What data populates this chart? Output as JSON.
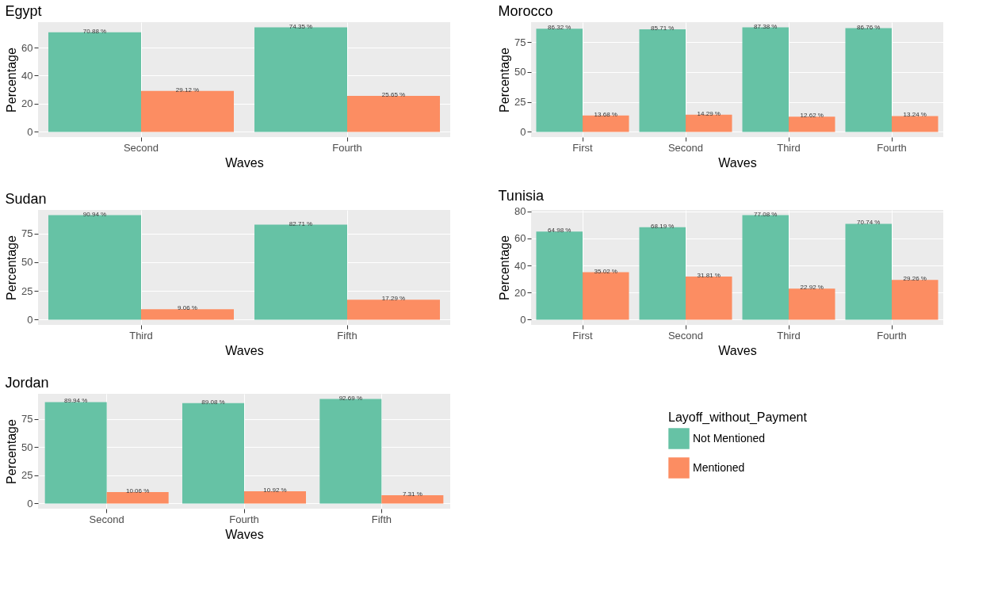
{
  "chart_data": [
    {
      "type": "bar",
      "title": "Egypt",
      "xlabel": "Waves",
      "ylabel": "Percentage",
      "categories": [
        "Second",
        "Fourth"
      ],
      "ylim": [
        -3.72,
        78.07
      ],
      "yticks": [
        0,
        20,
        40,
        60
      ],
      "grid": true,
      "series": [
        {
          "color": "#66c2a5",
          "values": [
            70.88,
            74.35
          ],
          "value_labels": [
            "70.88 %",
            "74.35 %"
          ]
        },
        {
          "color": "#fc8d62",
          "values": [
            29.12,
            25.65
          ],
          "value_labels": [
            "29.12 %",
            "25.65 %"
          ]
        }
      ]
    },
    {
      "type": "bar",
      "title": "Morocco",
      "xlabel": "Waves",
      "ylabel": "Percentage",
      "categories": [
        "First",
        "Second",
        "Third",
        "Fourth"
      ],
      "ylim": [
        -4.37,
        91.75
      ],
      "yticks": [
        0,
        25,
        50,
        75
      ],
      "grid": true,
      "series": [
        {
          "color": "#66c2a5",
          "values": [
            86.32,
            85.71,
            87.38,
            86.76
          ],
          "value_labels": [
            "86.32 %",
            "85.71 %",
            "87.38 %",
            "86.76 %"
          ]
        },
        {
          "color": "#fc8d62",
          "values": [
            13.68,
            14.29,
            12.62,
            13.24
          ],
          "value_labels": [
            "13.68 %",
            "14.29 %",
            "12.62 %",
            "13.24 %"
          ]
        }
      ]
    },
    {
      "type": "bar",
      "title": "Sudan",
      "xlabel": "Waves",
      "ylabel": "Percentage",
      "categories": [
        "Third",
        "Fifth"
      ],
      "ylim": [
        -4.55,
        95.49
      ],
      "yticks": [
        0,
        25,
        50,
        75
      ],
      "grid": true,
      "series": [
        {
          "color": "#66c2a5",
          "values": [
            90.94,
            82.71
          ],
          "value_labels": [
            "90.94 %",
            "82.71 %"
          ]
        },
        {
          "color": "#fc8d62",
          "values": [
            9.06,
            17.29
          ],
          "value_labels": [
            "9.06 %",
            "17.29 %"
          ]
        }
      ]
    },
    {
      "type": "bar",
      "title": "Tunisia",
      "xlabel": "Waves",
      "ylabel": "Percentage",
      "categories": [
        "First",
        "Second",
        "Third",
        "Fourth"
      ],
      "ylim": [
        -3.85,
        80.93
      ],
      "yticks": [
        0,
        20,
        40,
        60,
        80
      ],
      "grid": true,
      "series": [
        {
          "color": "#66c2a5",
          "values": [
            64.98,
            68.19,
            77.08,
            70.74
          ],
          "value_labels": [
            "64.98 %",
            "68.19 %",
            "77.08 %",
            "70.74 %"
          ]
        },
        {
          "color": "#fc8d62",
          "values": [
            35.02,
            31.81,
            22.92,
            29.26
          ],
          "value_labels": [
            "35.02 %",
            "31.81 %",
            "22.92 %",
            "29.26 %"
          ]
        }
      ]
    },
    {
      "type": "bar",
      "title": "Jordan",
      "xlabel": "Waves",
      "ylabel": "Percentage",
      "categories": [
        "Second",
        "Fourth",
        "Fifth"
      ],
      "ylim": [
        -4.63,
        97.32
      ],
      "yticks": [
        0,
        25,
        50,
        75
      ],
      "grid": true,
      "legend": "right",
      "legend_title": "Layoff_without_Payment",
      "series": [
        {
          "name": "Not Mentioned",
          "color": "#66c2a5",
          "values": [
            89.94,
            89.08,
            92.69
          ],
          "value_labels": [
            "89.94 %",
            "89.08 %",
            "92.69 %"
          ]
        },
        {
          "name": "Mentioned",
          "color": "#fc8d62",
          "values": [
            10.06,
            10.92,
            7.31
          ],
          "value_labels": [
            "10.06 %",
            "10.92 %",
            "7.31 %"
          ]
        }
      ]
    }
  ]
}
